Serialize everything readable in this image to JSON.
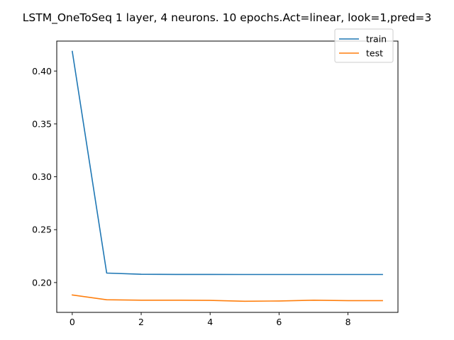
{
  "chart_data": {
    "type": "line",
    "title": "LSTM_OneToSeq 1 layer, 4 neurons. 10 epochs.Act=linear, look=1,pred=3",
    "xlabel": "",
    "ylabel": "",
    "x": [
      0,
      1,
      2,
      3,
      4,
      5,
      6,
      7,
      8,
      9
    ],
    "xlim": [
      -0.45,
      9.45
    ],
    "ylim": [
      0.1718,
      0.4283
    ],
    "xticks": [
      0,
      2,
      4,
      6,
      8
    ],
    "yticks": [
      0.2,
      0.25,
      0.3,
      0.35,
      0.4
    ],
    "xtick_labels": [
      "0",
      "2",
      "4",
      "6",
      "8"
    ],
    "ytick_labels": [
      "0.20",
      "0.25",
      "0.30",
      "0.35",
      "0.40"
    ],
    "grid": false,
    "legend_position": "top-right",
    "series": [
      {
        "name": "train",
        "color": "#1f77b4",
        "values": [
          0.4185,
          0.209,
          0.2078,
          0.2077,
          0.2077,
          0.2076,
          0.2076,
          0.2076,
          0.2076,
          0.2076
        ]
      },
      {
        "name": "test",
        "color": "#ff7f0e",
        "values": [
          0.1883,
          0.1837,
          0.1833,
          0.1833,
          0.1831,
          0.1823,
          0.1826,
          0.1833,
          0.1829,
          0.1829
        ]
      }
    ]
  }
}
